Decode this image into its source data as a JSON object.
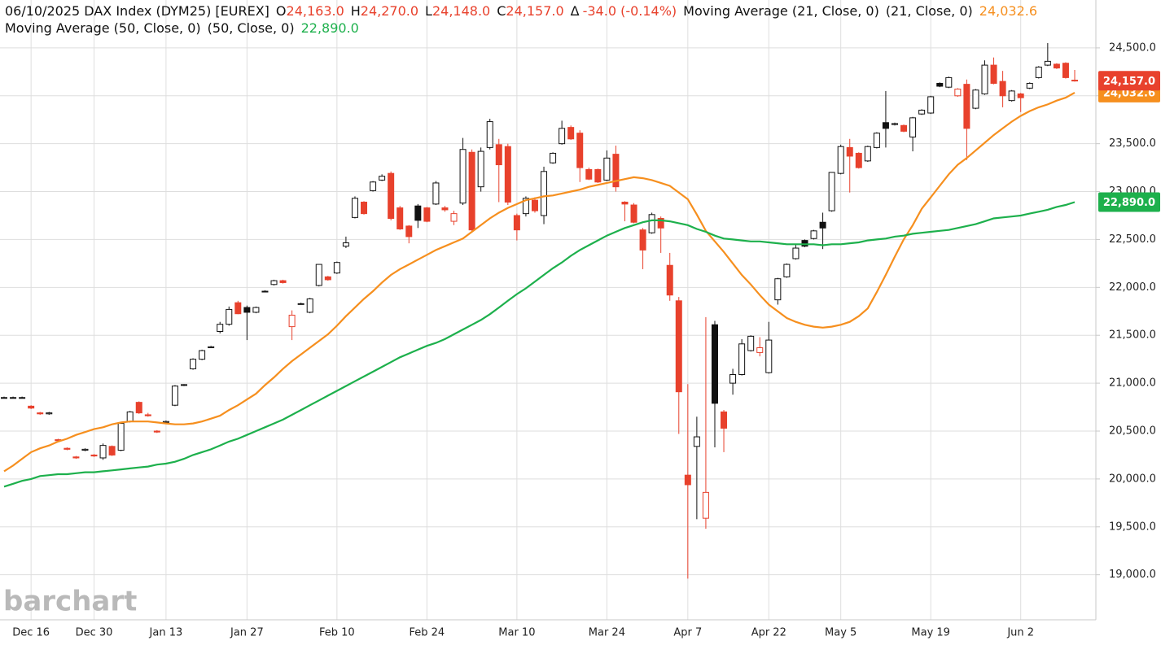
{
  "chart_data": {
    "type": "candlestick",
    "title": "06/10/2025 DAX Index (DYM25) [EUREX]",
    "ohlc_readout": [
      {
        "key": "O",
        "value": "24,163.0"
      },
      {
        "key": "H",
        "value": "24,270.0"
      },
      {
        "key": "L",
        "value": "24,148.0"
      },
      {
        "key": "C",
        "value": "24,157.0"
      }
    ],
    "change_key": "Δ",
    "change": "-34.0 (-0.14%)",
    "readout_color": "#e8412c",
    "watermark": "barchart",
    "up_color": "#111111",
    "down_color": "#e8412c",
    "grid": true,
    "ylim": [
      18530,
      25000
    ],
    "yticks": [
      {
        "value": 19000,
        "label": "19,000.0"
      },
      {
        "value": 19500,
        "label": "19,500.0"
      },
      {
        "value": 20000,
        "label": "20,000.0"
      },
      {
        "value": 20500,
        "label": "20,500.0"
      },
      {
        "value": 21000,
        "label": "21,000.0"
      },
      {
        "value": 21500,
        "label": "21,500.0"
      },
      {
        "value": 22000,
        "label": "22,000.0"
      },
      {
        "value": 22500,
        "label": "22,500.0"
      },
      {
        "value": 23000,
        "label": "23,000.0"
      },
      {
        "value": 23500,
        "label": "23,500.0"
      },
      {
        "value": 24000,
        "label": "24,000.0"
      },
      {
        "value": 24500,
        "label": "24,500.0"
      }
    ],
    "categories": [
      null,
      null,
      null,
      "Dec 16",
      null,
      null,
      null,
      null,
      null,
      null,
      "Dec 30",
      null,
      null,
      null,
      null,
      null,
      null,
      null,
      "Jan 13",
      null,
      null,
      null,
      null,
      null,
      null,
      null,
      null,
      "Jan 27",
      null,
      null,
      null,
      null,
      null,
      null,
      null,
      null,
      null,
      "Feb 10",
      null,
      null,
      null,
      null,
      null,
      null,
      null,
      null,
      null,
      "Feb 24",
      null,
      null,
      null,
      null,
      null,
      null,
      null,
      null,
      null,
      "Mar 10",
      null,
      null,
      null,
      null,
      null,
      null,
      null,
      null,
      null,
      "Mar 24",
      null,
      null,
      null,
      null,
      null,
      null,
      null,
      null,
      "Apr 7",
      null,
      null,
      null,
      null,
      null,
      null,
      null,
      null,
      "Apr 22",
      null,
      null,
      null,
      null,
      null,
      null,
      null,
      "May 5",
      null,
      null,
      null,
      null,
      null,
      null,
      null,
      null,
      null,
      "May 19",
      null,
      null,
      null,
      null,
      null,
      null,
      null,
      null,
      null,
      "Jun 2",
      null,
      null,
      null,
      null,
      null,
      null
    ],
    "open": [
      20850,
      20850,
      20850,
      20760,
      20690,
      20680,
      20410,
      20320,
      20230,
      20300,
      20250,
      20220,
      20340,
      20300,
      20600,
      20800,
      20670,
      20500,
      20590,
      20770,
      20980,
      21150,
      21250,
      21370,
      21540,
      21615,
      21840,
      21790,
      21740,
      21960,
      22030,
      22070,
      21590,
      21830,
      21740,
      22020,
      22110,
      22150,
      22430,
      22730,
      22890,
      23010,
      23120,
      23190,
      22830,
      22640,
      22850,
      22830,
      22870,
      22830,
      22690,
      22880,
      23410,
      23050,
      23460,
      23490,
      23470,
      22750,
      22770,
      22910,
      22750,
      23300,
      23500,
      23670,
      23610,
      23230,
      23230,
      23120,
      23390,
      22890,
      22860,
      22600,
      22570,
      22720,
      22230,
      21860,
      20040,
      20340,
      19590,
      21610,
      20700,
      21000,
      21090,
      21340,
      21320,
      21110,
      21870,
      22110,
      22300,
      22490,
      22510,
      22680,
      22800,
      23190,
      23460,
      23400,
      23320,
      23460,
      23720,
      23700,
      23690,
      23570,
      23810,
      23820,
      24130,
      24090,
      24000,
      24120,
      23870,
      24020,
      24320,
      24150,
      23950,
      24020,
      24080,
      24190,
      24320,
      24330,
      24340,
      24163
    ],
    "high": [
      20860,
      20860,
      20860,
      20770,
      20700,
      20700,
      20420,
      20330,
      20240,
      20320,
      20260,
      20370,
      20350,
      20590,
      20710,
      20810,
      20690,
      20510,
      20610,
      20980,
      20990,
      21260,
      21350,
      21390,
      21640,
      21800,
      21860,
      21810,
      21800,
      21970,
      22080,
      22080,
      21760,
      21840,
      21890,
      22240,
      22120,
      22270,
      22530,
      22950,
      22900,
      23110,
      23180,
      23210,
      22850,
      22650,
      22870,
      22840,
      23110,
      22850,
      22800,
      23560,
      23440,
      23460,
      23760,
      23550,
      23500,
      22770,
      22950,
      22940,
      23260,
      23410,
      23740,
      23690,
      23640,
      23250,
      23240,
      23430,
      23480,
      22900,
      22880,
      22620,
      22780,
      22740,
      22360,
      21900,
      20990,
      20650,
      21690,
      21650,
      20720,
      21150,
      21460,
      21500,
      21480,
      21640,
      22100,
      22250,
      22450,
      22500,
      22600,
      22780,
      23200,
      23490,
      23550,
      23410,
      23480,
      23620,
      24050,
      23720,
      23700,
      23780,
      23860,
      24000,
      24140,
      24200,
      24080,
      24170,
      24070,
      24370,
      24400,
      24260,
      24060,
      24030,
      24140,
      24310,
      24550,
      24340,
      24350,
      24270
    ],
    "low": [
      20840,
      20840,
      20840,
      20730,
      20670,
      20670,
      20390,
      20300,
      20210,
      20290,
      20230,
      20200,
      20240,
      20290,
      20590,
      20680,
      20650,
      20480,
      20580,
      20760,
      20970,
      21140,
      21240,
      21370,
      21520,
      21600,
      21720,
      21450,
      21730,
      21950,
      22020,
      22040,
      21450,
      21820,
      21730,
      22010,
      22070,
      22140,
      22410,
      22720,
      22760,
      23000,
      23110,
      22700,
      22600,
      22460,
      22620,
      22680,
      22860,
      22790,
      22650,
      22860,
      22590,
      23000,
      23440,
      22890,
      22860,
      22490,
      22740,
      22780,
      22660,
      23290,
      23490,
      23540,
      23100,
      23120,
      23090,
      23110,
      23000,
      22690,
      22670,
      22190,
      22560,
      22360,
      21860,
      20470,
      18960,
      19580,
      19480,
      20330,
      20280,
      20880,
      21080,
      21330,
      21280,
      21100,
      21820,
      22100,
      22290,
      22420,
      22500,
      22400,
      22790,
      23180,
      22990,
      23240,
      23310,
      23450,
      23460,
      23690,
      23620,
      23420,
      23800,
      23810,
      24090,
      24080,
      23990,
      23330,
      23860,
      24010,
      24120,
      23880,
      23940,
      23830,
      24070,
      24180,
      24310,
      24280,
      24180,
      24148
    ],
    "close": [
      20850,
      20850,
      20850,
      20740,
      20680,
      20690,
      20400,
      20310,
      20220,
      20310,
      20240,
      20350,
      20250,
      20580,
      20700,
      20690,
      20660,
      20490,
      20600,
      20970,
      20985,
      21250,
      21340,
      21380,
      21615,
      21770,
      21725,
      21740,
      21790,
      21960,
      22070,
      22050,
      21710,
      21830,
      21880,
      22240,
      22080,
      22260,
      22465,
      22930,
      22770,
      23100,
      23160,
      22720,
      22610,
      22530,
      22700,
      22690,
      23090,
      22810,
      22770,
      23440,
      22600,
      23420,
      23730,
      23280,
      22890,
      22600,
      22930,
      22800,
      23210,
      23400,
      23660,
      23550,
      23250,
      23130,
      23100,
      23350,
      23050,
      22870,
      22680,
      22390,
      22760,
      22620,
      21920,
      20910,
      19940,
      20440,
      19860,
      20790,
      20530,
      21090,
      21410,
      21490,
      21370,
      21450,
      22090,
      22240,
      22410,
      22430,
      22590,
      22620,
      23200,
      23470,
      23370,
      23250,
      23470,
      23610,
      23660,
      23710,
      23630,
      23770,
      23850,
      23990,
      24100,
      24190,
      24070,
      23660,
      24060,
      24320,
      24130,
      24000,
      24050,
      23980,
      24130,
      24300,
      24360,
      24290,
      24190,
      24157
    ],
    "series": [
      {
        "name": "Moving Average (21, Close, 0)",
        "params": "(21, Close, 0)",
        "value_label": "24,032.6",
        "color": "#f68f1e",
        "values": [
          20080,
          20140,
          20210,
          20280,
          20320,
          20350,
          20390,
          20420,
          20460,
          20490,
          20520,
          20540,
          20570,
          20590,
          20600,
          20600,
          20600,
          20590,
          20580,
          20570,
          20570,
          20580,
          20600,
          20630,
          20660,
          20720,
          20770,
          20830,
          20890,
          20980,
          21060,
          21150,
          21230,
          21300,
          21370,
          21440,
          21510,
          21600,
          21700,
          21790,
          21880,
          21960,
          22050,
          22130,
          22190,
          22240,
          22290,
          22340,
          22390,
          22430,
          22470,
          22510,
          22580,
          22650,
          22720,
          22780,
          22830,
          22870,
          22910,
          22930,
          22950,
          22960,
          22980,
          23000,
          23020,
          23050,
          23070,
          23090,
          23110,
          23130,
          23150,
          23140,
          23120,
          23090,
          23060,
          22990,
          22920,
          22760,
          22590,
          22480,
          22370,
          22250,
          22130,
          22030,
          21920,
          21820,
          21750,
          21680,
          21640,
          21610,
          21590,
          21580,
          21590,
          21610,
          21640,
          21700,
          21780,
          21950,
          22130,
          22320,
          22500,
          22650,
          22820,
          22940,
          23060,
          23180,
          23280,
          23350,
          23430,
          23510,
          23590,
          23660,
          23730,
          23790,
          23840,
          23880,
          23910,
          23950,
          23980,
          24032.6
        ]
      },
      {
        "name": "Moving Average (50, Close, 0)",
        "params": "(50, Close, 0)",
        "value_label": "22,890.0",
        "color": "#1db04c",
        "values": [
          19920,
          19950,
          19980,
          20000,
          20030,
          20040,
          20050,
          20050,
          20060,
          20070,
          20070,
          20080,
          20090,
          20100,
          20110,
          20120,
          20130,
          20150,
          20160,
          20180,
          20210,
          20250,
          20280,
          20310,
          20350,
          20390,
          20420,
          20460,
          20500,
          20540,
          20580,
          20620,
          20670,
          20720,
          20770,
          20820,
          20870,
          20920,
          20970,
          21020,
          21070,
          21120,
          21170,
          21220,
          21270,
          21310,
          21350,
          21390,
          21420,
          21460,
          21510,
          21560,
          21610,
          21660,
          21720,
          21790,
          21860,
          21930,
          21990,
          22060,
          22130,
          22200,
          22260,
          22330,
          22390,
          22440,
          22490,
          22540,
          22580,
          22620,
          22650,
          22680,
          22700,
          22700,
          22690,
          22670,
          22650,
          22610,
          22580,
          22540,
          22510,
          22500,
          22490,
          22480,
          22480,
          22470,
          22460,
          22450,
          22450,
          22450,
          22450,
          22440,
          22450,
          22450,
          22460,
          22470,
          22490,
          22500,
          22510,
          22530,
          22540,
          22560,
          22570,
          22580,
          22590,
          22600,
          22620,
          22640,
          22660,
          22690,
          22720,
          22730,
          22740,
          22750,
          22770,
          22790,
          22810,
          22840,
          22860,
          22890
        ]
      }
    ]
  }
}
